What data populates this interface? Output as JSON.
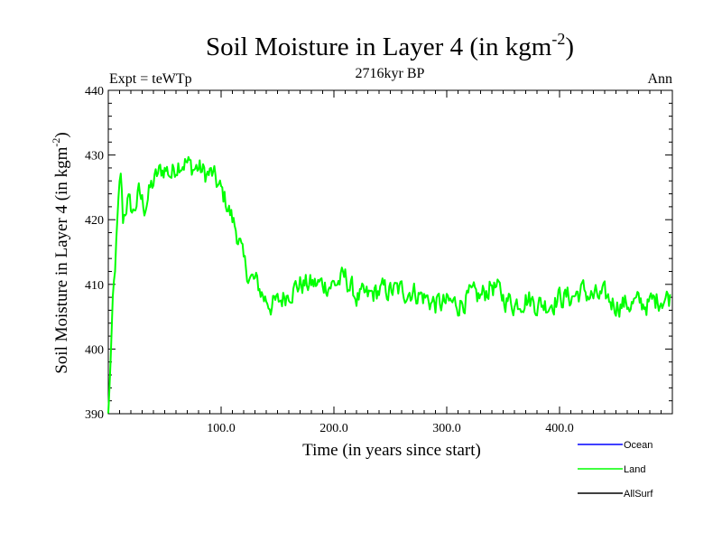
{
  "chart_data": {
    "type": "line",
    "title": "Soil Moisture in Layer 4 (in kgm",
    "title_sup": "-2",
    "title_close": ")",
    "subtitle": "2716kyr BP",
    "left_label": "Expt = teWTp",
    "right_label": "Ann",
    "xlabel": "Time (in years since start)",
    "ylabel": "Soil Moisture in Layer 4 (in kgm",
    "ylabel_sup": "-2",
    "ylabel_close": ")",
    "xlim": [
      0,
      500
    ],
    "ylim": [
      390,
      440
    ],
    "x_ticks": [
      100,
      200,
      300,
      400
    ],
    "x_tick_labels": [
      "100.0",
      "200.0",
      "300.0",
      "400.0"
    ],
    "y_ticks": [
      390,
      400,
      410,
      420,
      430,
      440
    ],
    "y_tick_labels": [
      "390",
      "400",
      "410",
      "420",
      "430",
      "440"
    ],
    "legend": [
      {
        "name": "Ocean",
        "color": "#0000ff"
      },
      {
        "name": "Land",
        "color": "#00ff00"
      },
      {
        "name": "AllSurf",
        "color": "#000000"
      }
    ],
    "series": [
      {
        "name": "Land",
        "color": "#00ff00",
        "keypoints": [
          [
            0,
            390
          ],
          [
            2,
            398
          ],
          [
            4,
            408
          ],
          [
            6,
            413
          ],
          [
            9,
            422
          ],
          [
            11,
            427
          ],
          [
            13,
            420
          ],
          [
            17,
            423
          ],
          [
            22,
            421
          ],
          [
            27,
            424
          ],
          [
            32,
            422
          ],
          [
            38,
            425
          ],
          [
            44,
            427
          ],
          [
            50,
            428
          ],
          [
            56,
            427
          ],
          [
            62,
            429
          ],
          [
            68,
            429
          ],
          [
            74,
            428
          ],
          [
            80,
            428
          ],
          [
            86,
            427
          ],
          [
            92,
            427
          ],
          [
            98,
            425
          ],
          [
            104,
            423
          ],
          [
            110,
            420
          ],
          [
            116,
            417
          ],
          [
            120,
            413
          ],
          [
            126,
            411
          ],
          [
            132,
            410
          ],
          [
            138,
            408
          ],
          [
            144,
            407
          ],
          [
            150,
            407
          ],
          [
            160,
            409
          ],
          [
            170,
            410
          ],
          [
            180,
            410
          ],
          [
            190,
            410
          ],
          [
            200,
            410
          ],
          [
            210,
            411
          ],
          [
            220,
            408
          ],
          [
            230,
            408
          ],
          [
            240,
            409
          ],
          [
            250,
            409
          ],
          [
            260,
            409
          ],
          [
            270,
            409
          ],
          [
            280,
            408
          ],
          [
            290,
            407
          ],
          [
            300,
            407
          ],
          [
            310,
            407
          ],
          [
            320,
            408
          ],
          [
            330,
            408
          ],
          [
            340,
            410
          ],
          [
            350,
            408
          ],
          [
            360,
            407
          ],
          [
            370,
            408
          ],
          [
            380,
            407
          ],
          [
            390,
            407
          ],
          [
            400,
            408
          ],
          [
            410,
            408
          ],
          [
            420,
            409
          ],
          [
            430,
            408
          ],
          [
            440,
            408
          ],
          [
            450,
            407
          ],
          [
            460,
            407
          ],
          [
            470,
            407
          ],
          [
            480,
            407
          ],
          [
            490,
            408
          ],
          [
            498,
            408
          ]
        ],
        "noise_amplitude": 1.6
      }
    ]
  }
}
